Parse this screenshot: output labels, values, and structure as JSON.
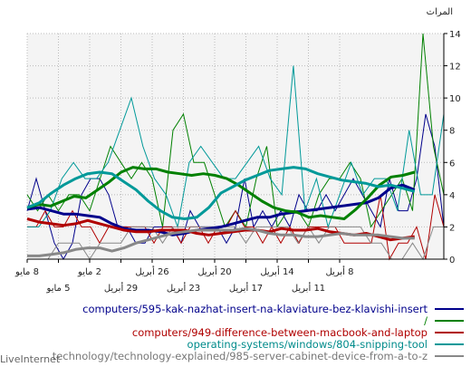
{
  "watermark": "LiveInternet",
  "chart_data": {
    "type": "line",
    "unit_label": "المرات",
    "y_ticks": [
      0,
      2,
      4,
      6,
      8,
      10,
      12,
      14
    ],
    "ylim": [
      0,
      14
    ],
    "xlim": [
      -40,
      0
    ],
    "grid": true,
    "x_ticks": [
      {
        "x": -40,
        "label": "8 مايو",
        "row": 0
      },
      {
        "x": -37,
        "label": "5 مايو",
        "row": 1
      },
      {
        "x": -34,
        "label": "2 مايو",
        "row": 0
      },
      {
        "x": -31,
        "label": "29 أبريل",
        "row": 1
      },
      {
        "x": -28,
        "label": "26 أبريل",
        "row": 0
      },
      {
        "x": -25,
        "label": "23 أبريل",
        "row": 1
      },
      {
        "x": -22,
        "label": "20 أبريل",
        "row": 0
      },
      {
        "x": -19,
        "label": "17 أبريل",
        "row": 1
      },
      {
        "x": -16,
        "label": "14 أبريل",
        "row": 0
      },
      {
        "x": -13,
        "label": "11 أبريل",
        "row": 1
      },
      {
        "x": -10,
        "label": "8 أبريل",
        "row": 0
      }
    ],
    "x_ticks_note_hidden": [],
    "legend_position": "bottom",
    "series": [
      {
        "name": "computers/595-kak-nazhat-insert-na-klaviature-bez-klavishi-insert",
        "color": "#00008b",
        "text_color": "#00008b",
        "raw_values": [
          3,
          5,
          3,
          1,
          0,
          1,
          4,
          5,
          5,
          4,
          2,
          2,
          1,
          1,
          2,
          2,
          2,
          1,
          3,
          2,
          2,
          2,
          1,
          2,
          5,
          2,
          3,
          2,
          3,
          2,
          4,
          3,
          3,
          4,
          3,
          4,
          5,
          4,
          3,
          2,
          5,
          3,
          3,
          5,
          9,
          7,
          2
        ],
        "smooth_values": [
          3.1,
          3.2,
          3.0,
          2.8,
          2.8,
          2.7,
          2.6,
          2.2,
          1.9,
          1.8,
          1.8,
          1.7,
          1.5,
          1.6,
          1.8,
          1.9,
          2.0,
          2.2,
          2.4,
          2.6,
          2.6,
          2.8,
          2.9,
          3.0,
          3.1,
          3.2,
          3.3,
          3.4,
          3.5,
          3.8,
          4.4,
          4.6,
          4.3
        ]
      },
      {
        "name": "/",
        "color": "#008000",
        "text_color": "#008000",
        "raw_values": [
          4,
          3,
          4,
          3,
          4,
          4,
          3,
          5,
          7,
          6,
          5,
          6,
          5,
          2,
          8,
          9,
          6,
          6,
          4,
          2,
          3,
          2,
          5,
          7,
          2,
          3,
          3,
          2,
          4,
          5,
          5,
          6,
          5,
          2,
          3,
          4,
          5,
          3,
          14,
          7,
          4
        ],
        "smooth_values": [
          3.2,
          3.4,
          3.3,
          3.6,
          3.9,
          3.8,
          4.3,
          4.8,
          5.4,
          5.7,
          5.6,
          5.6,
          5.4,
          5.3,
          5.2,
          5.3,
          5.2,
          5.0,
          4.6,
          4.1,
          3.6,
          3.2,
          3.0,
          2.9,
          2.6,
          2.7,
          2.6,
          2.5,
          3.1,
          3.8,
          4.6,
          5.1,
          5.2,
          5.4
        ]
      },
      {
        "name": "computers/949-difference-between-macbook-and-laptop",
        "color": "#b00000",
        "text_color": "#b00000",
        "raw_values": [
          2,
          2,
          3,
          2,
          2,
          3,
          2,
          2,
          1,
          2,
          2,
          2,
          2,
          2,
          1,
          2,
          2,
          1,
          2,
          2,
          1,
          2,
          2,
          3,
          2,
          2,
          1,
          2,
          1,
          2,
          1,
          2,
          2,
          2,
          2,
          1,
          1,
          1,
          1,
          4,
          0,
          1,
          1,
          2,
          0,
          4,
          2
        ],
        "smooth_values": [
          2.5,
          2.3,
          2.2,
          2.1,
          2.2,
          2.4,
          2.2,
          2.0,
          1.8,
          1.7,
          1.7,
          1.8,
          1.8,
          1.8,
          1.6,
          1.5,
          1.6,
          1.7,
          1.8,
          1.8,
          1.7,
          1.9,
          1.8,
          1.8,
          1.9,
          1.7,
          1.6,
          1.5,
          1.6,
          1.4,
          1.2,
          1.3,
          1.4
        ]
      },
      {
        "name": "operating-systems/windows/804-snipping-tool",
        "color": "#009999",
        "text_color": "#008b8b",
        "raw_values": [
          2,
          2,
          3,
          5,
          6,
          5,
          5,
          6,
          8,
          10,
          7,
          5,
          4,
          2,
          6,
          7,
          6,
          5,
          5,
          6,
          7,
          5,
          4,
          12,
          3,
          5,
          2,
          4,
          6,
          4,
          5,
          5,
          3,
          8,
          4,
          4,
          9
        ],
        "smooth_values": [
          3.2,
          3.5,
          4.1,
          4.6,
          5.0,
          5.3,
          5.4,
          5.3,
          4.8,
          4.3,
          3.6,
          3.0,
          2.6,
          2.5,
          2.6,
          3.2,
          4.1,
          4.5,
          4.9,
          5.2,
          5.5,
          5.6,
          5.7,
          5.6,
          5.3,
          5.1,
          4.9,
          4.8,
          4.7,
          4.5,
          4.6,
          4.4,
          4.2
        ]
      },
      {
        "name": "technology/technology-explained/985-server-cabinet-device-from-a-to-z",
        "color": "#888888",
        "text_color": "#777777",
        "raw_values": [
          0,
          0,
          0,
          1,
          1,
          1,
          0,
          1,
          1,
          1,
          2,
          2,
          2,
          1,
          2,
          2,
          2,
          2,
          2,
          2,
          2,
          1,
          2,
          2,
          2,
          2,
          1,
          2,
          1,
          2,
          2,
          2,
          2,
          1,
          1,
          0,
          0,
          1,
          0,
          2,
          2
        ],
        "smooth_values": [
          0.2,
          0.2,
          0.3,
          0.4,
          0.6,
          0.7,
          0.7,
          0.5,
          0.7,
          1.0,
          1.2,
          1.4,
          1.6,
          1.7,
          1.8,
          1.8,
          1.8,
          1.8,
          1.9,
          1.8,
          1.6,
          1.5,
          1.5,
          1.4,
          1.4,
          1.5,
          1.6,
          1.5,
          1.5,
          1.5,
          1.4,
          1.3,
          1.3
        ]
      }
    ]
  }
}
